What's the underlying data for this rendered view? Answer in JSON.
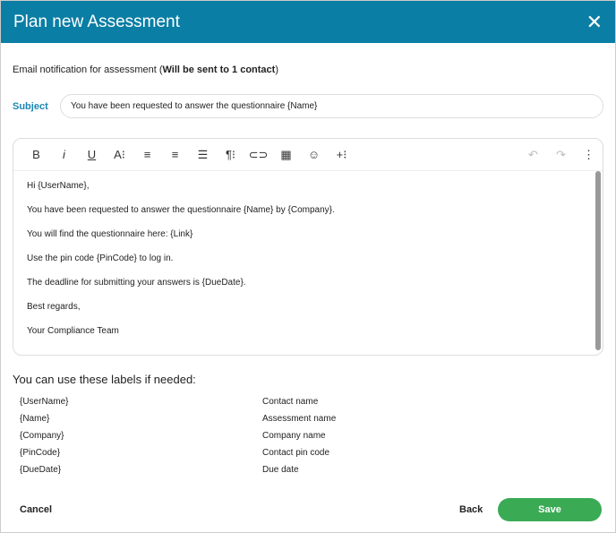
{
  "title": "Plan new Assessment",
  "note": {
    "prefix": "Email notification for assessment (",
    "bold": "Will be sent to 1 contact",
    "suffix": ")"
  },
  "subject": {
    "label": "Subject",
    "value": "You have been requested to answer the questionnaire {Name}"
  },
  "toolbar": [
    "B",
    "i",
    "U",
    "A⁝",
    "≡",
    "≡",
    "☰",
    "¶⁝",
    "⊂⊃",
    "▦",
    "☺",
    "+⁝"
  ],
  "toolbar_icons": [
    "bold-icon",
    "italic-icon",
    "underline-icon",
    "font-size-icon",
    "align-left-icon",
    "align-center-icon",
    "ordered-list-icon",
    "paragraph-icon",
    "link-icon",
    "table-icon",
    "emoji-icon",
    "insert-more-icon"
  ],
  "undo": "↶",
  "redo": "↷",
  "more": "⋮",
  "body": [
    "Hi {UserName},",
    "You have been requested to answer the questionnaire {Name} by {Company}.",
    "You will find the questionnaire here: {Link}",
    "Use the pin code {PinCode} to log in.",
    "The deadline for submitting your answers is {DueDate}.",
    "Best regards,",
    "Your Compliance Team"
  ],
  "labels_heading": "You can use these labels if needed:",
  "labels": [
    [
      "{UserName}",
      "Contact name"
    ],
    [
      "{Name}",
      "Assessment name"
    ],
    [
      "{Company}",
      "Company name"
    ],
    [
      "{PinCode}",
      "Contact pin code"
    ],
    [
      "{DueDate}",
      "Due date"
    ]
  ],
  "footer": {
    "cancel": "Cancel",
    "back": "Back",
    "save": "Save"
  },
  "colors": {
    "header": "#0a7ea4",
    "save": "#3aaa55",
    "subject_label": "#1a86b4"
  }
}
